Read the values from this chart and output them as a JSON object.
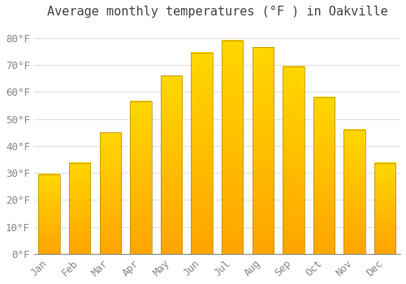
{
  "title": "Average monthly temperatures (°F ) in Oakville",
  "months": [
    "Jan",
    "Feb",
    "Mar",
    "Apr",
    "May",
    "Jun",
    "Jul",
    "Aug",
    "Sep",
    "Oct",
    "Nov",
    "Dec"
  ],
  "values": [
    29.5,
    33.8,
    45.0,
    56.5,
    66.0,
    74.5,
    79.0,
    76.5,
    69.5,
    58.0,
    46.0,
    33.8
  ],
  "bar_color_top": "#FFD700",
  "bar_color_bottom": "#FFA500",
  "bar_edge_color": "#B8860B",
  "background_color": "#FFFFFF",
  "plot_bg_color": "#FFFFFF",
  "grid_color": "#E0E0E0",
  "tick_color": "#888888",
  "title_color": "#444444",
  "ylim": [
    0,
    85
  ],
  "yticks": [
    0,
    10,
    20,
    30,
    40,
    50,
    60,
    70,
    80
  ],
  "ytick_labels": [
    "0°F",
    "10°F",
    "20°F",
    "30°F",
    "40°F",
    "50°F",
    "60°F",
    "70°F",
    "80°F"
  ],
  "title_fontsize": 11,
  "tick_fontsize": 9,
  "bar_width": 0.7
}
